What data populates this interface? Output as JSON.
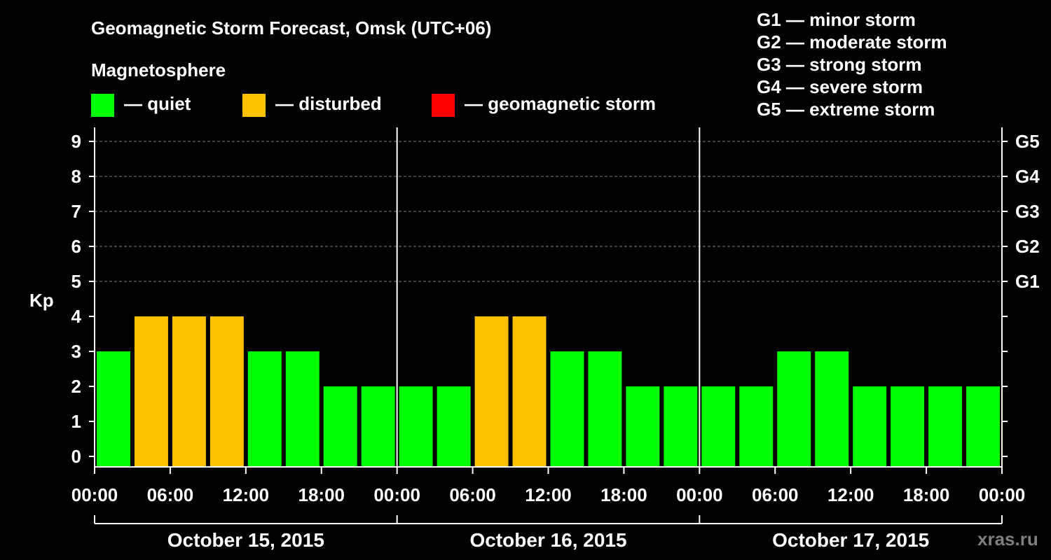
{
  "chart_data": {
    "type": "bar",
    "title": "Geomagnetic Storm Forecast, Omsk (UTC+06)",
    "legend_heading": "Magnetosphere",
    "legend": [
      {
        "label": "— quiet",
        "color": "#00ff00"
      },
      {
        "label": "— disturbed",
        "color": "#ffc000"
      },
      {
        "label": "— geomagnetic storm",
        "color": "#ff0000"
      }
    ],
    "storm_scale": [
      "G1 — minor storm",
      "G2 — moderate storm",
      "G3 — strong storm",
      "G4 — severe storm",
      "G5 — extreme storm"
    ],
    "ylabel": "Kp",
    "ylim": [
      0,
      9
    ],
    "y_ticks": [
      "0",
      "1",
      "2",
      "3",
      "4",
      "5",
      "6",
      "7",
      "8",
      "9"
    ],
    "right_axis_labels": [
      {
        "kp": 5,
        "label": "G1"
      },
      {
        "kp": 6,
        "label": "G2"
      },
      {
        "kp": 7,
        "label": "G3"
      },
      {
        "kp": 8,
        "label": "G4"
      },
      {
        "kp": 9,
        "label": "G5"
      }
    ],
    "x_tick_labels": [
      "00:00",
      "06:00",
      "12:00",
      "18:00",
      "00:00",
      "06:00",
      "12:00",
      "18:00",
      "00:00",
      "06:00",
      "12:00",
      "18:00",
      "00:00"
    ],
    "days": [
      "October 15, 2015",
      "October 16, 2015",
      "October 17, 2015"
    ],
    "values": [
      3,
      4,
      4,
      4,
      3,
      3,
      2,
      2,
      2,
      2,
      4,
      4,
      3,
      3,
      2,
      2,
      2,
      2,
      3,
      3,
      2,
      2,
      2,
      2
    ],
    "grid": true,
    "watermark": "xras.ru"
  }
}
